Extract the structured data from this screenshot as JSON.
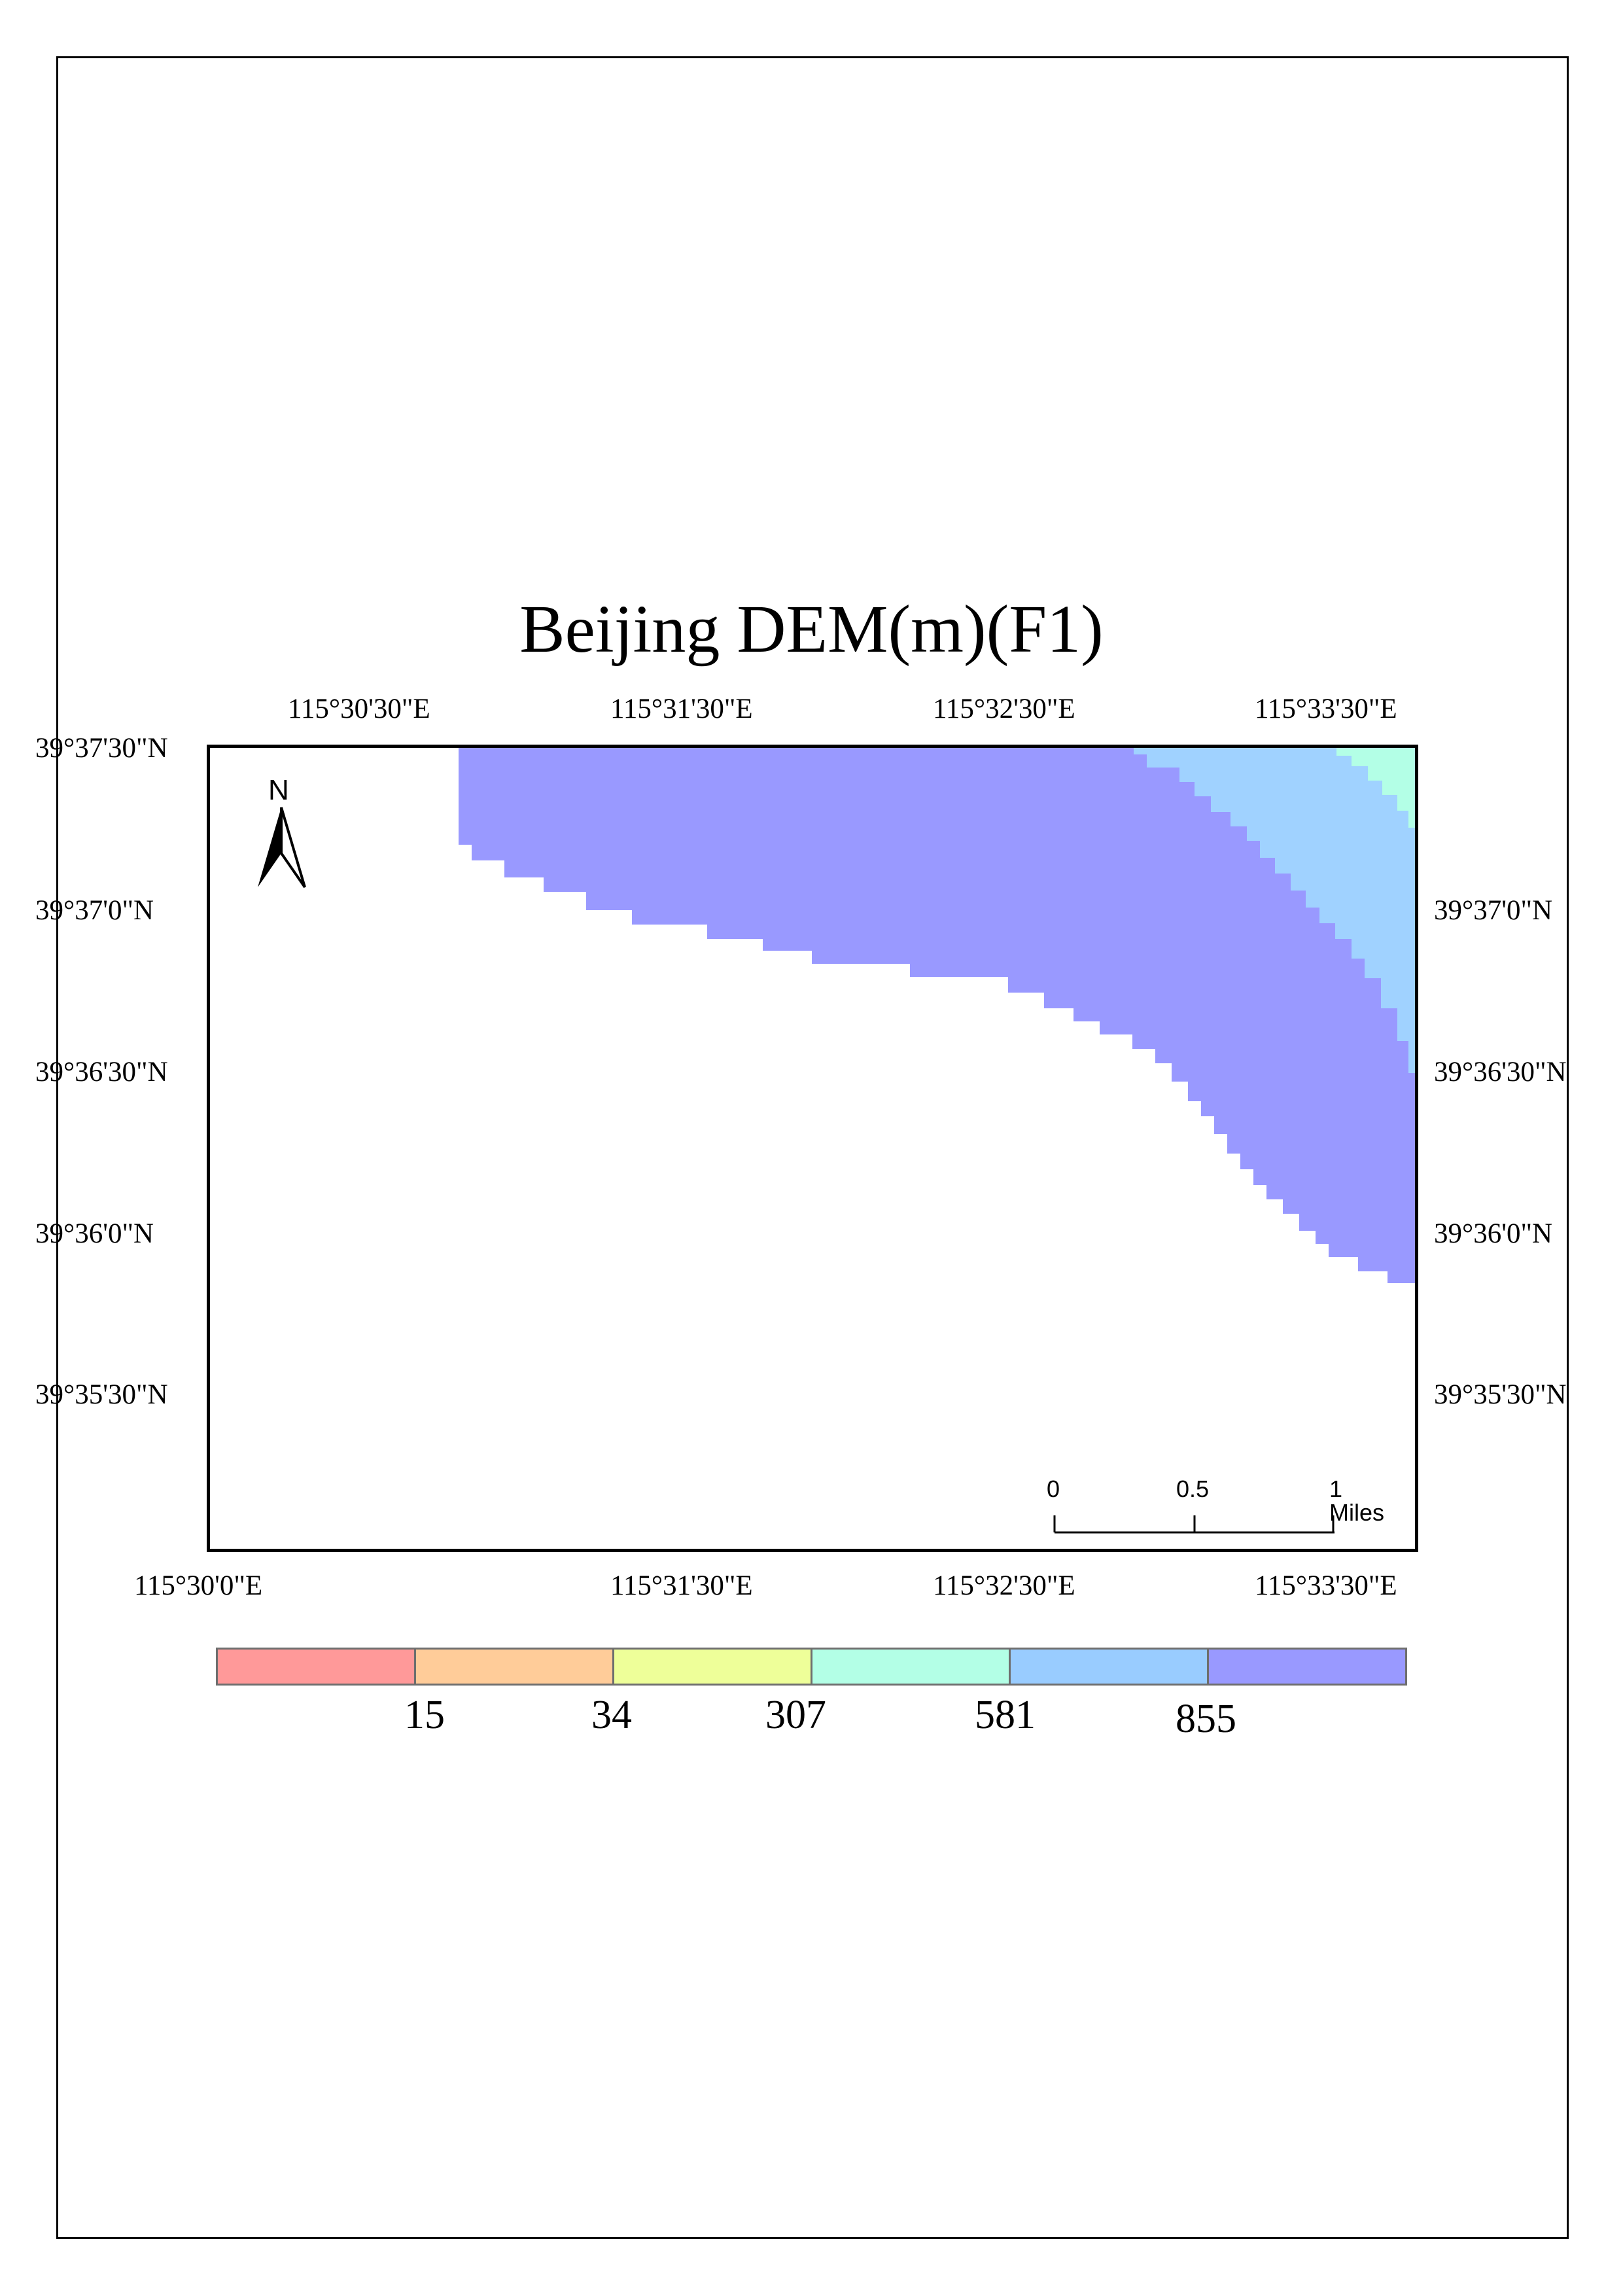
{
  "map": {
    "title": "Beijing DEM(m)(F1)",
    "lon_ticks_top": [
      "115°30'30\"E",
      "115°31'30\"E",
      "115°32'30\"E",
      "115°33'30\"E"
    ],
    "lon_ticks_bottom": [
      "115°30'0\"E",
      "115°31'30\"E",
      "115°32'30\"E",
      "115°33'30\"E"
    ],
    "lat_ticks_left": [
      "39°37'30\"N",
      "39°37'0\"N",
      "39°36'30\"N",
      "39°36'0\"N",
      "39°35'30\"N"
    ],
    "lat_ticks_right": [
      "39°37'0\"N",
      "39°36'30\"N",
      "39°36'0\"N",
      "39°35'30\"N"
    ],
    "north_arrow": {
      "label": "N",
      "icon": "north-arrow-icon"
    },
    "scale_bar": {
      "labels": [
        "0",
        "0.5",
        "1 Miles"
      ]
    },
    "legend": {
      "classes": [
        {
          "color": "#ff9999"
        },
        {
          "color": "#ffcc99"
        },
        {
          "color": "#eeff99"
        },
        {
          "color": "#b3ffe6"
        },
        {
          "color": "#99ccff"
        },
        {
          "color": "#9999ff"
        }
      ],
      "break_labels": [
        "15",
        "34",
        "307",
        "581",
        "855"
      ]
    },
    "raster_colors": {
      "band_855_plus": "#9999ff",
      "band_581_855": "#a0d2ff",
      "band_307_581": "#b3ffe6"
    }
  }
}
